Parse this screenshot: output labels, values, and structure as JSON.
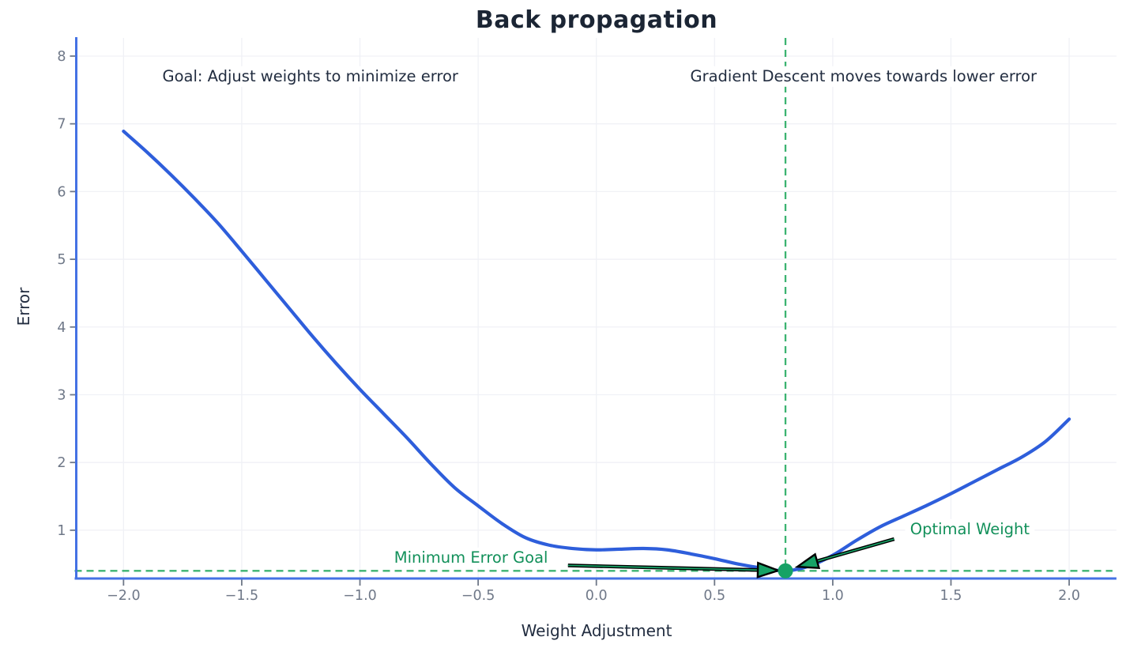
{
  "chart_data": {
    "type": "line",
    "title": "Back propagation",
    "xlabel": "Weight Adjustment",
    "ylabel": "Error",
    "xlim": [
      -2.2,
      2.2
    ],
    "ylim": [
      0.287,
      8.268
    ],
    "grid": true,
    "legend": "none",
    "xtick_values": [
      -2.0,
      -1.5,
      -1.0,
      -0.5,
      0.0,
      0.5,
      1.0,
      1.5,
      2.0
    ],
    "xtick_labels": [
      "−2.0",
      "−1.5",
      "−1.0",
      "−0.5",
      "0.0",
      "0.5",
      "1.0",
      "1.5",
      "2.0"
    ],
    "ytick_values": [
      1,
      2,
      3,
      4,
      5,
      6,
      7,
      8
    ],
    "ytick_labels": [
      "1",
      "2",
      "3",
      "4",
      "5",
      "6",
      "7",
      "8"
    ],
    "series": [
      {
        "name": "error-curve",
        "points": [
          [
            -2.0,
            6.89
          ],
          [
            -1.9,
            6.58
          ],
          [
            -1.8,
            6.25
          ],
          [
            -1.7,
            5.9
          ],
          [
            -1.6,
            5.53
          ],
          [
            -1.5,
            5.12
          ],
          [
            -1.4,
            4.7
          ],
          [
            -1.3,
            4.28
          ],
          [
            -1.2,
            3.86
          ],
          [
            -1.1,
            3.46
          ],
          [
            -1.0,
            3.08
          ],
          [
            -0.9,
            2.72
          ],
          [
            -0.8,
            2.36
          ],
          [
            -0.7,
            1.98
          ],
          [
            -0.6,
            1.63
          ],
          [
            -0.5,
            1.36
          ],
          [
            -0.4,
            1.1
          ],
          [
            -0.3,
            0.89
          ],
          [
            -0.2,
            0.78
          ],
          [
            -0.1,
            0.73
          ],
          [
            0.0,
            0.71
          ],
          [
            0.1,
            0.72
          ],
          [
            0.2,
            0.73
          ],
          [
            0.3,
            0.71
          ],
          [
            0.4,
            0.65
          ],
          [
            0.5,
            0.58
          ],
          [
            0.6,
            0.5
          ],
          [
            0.7,
            0.44
          ],
          [
            0.8,
            0.4
          ],
          [
            0.9,
            0.47
          ],
          [
            1.0,
            0.63
          ],
          [
            1.1,
            0.85
          ],
          [
            1.2,
            1.05
          ],
          [
            1.3,
            1.21
          ],
          [
            1.4,
            1.37
          ],
          [
            1.5,
            1.54
          ],
          [
            1.6,
            1.72
          ],
          [
            1.7,
            1.9
          ],
          [
            1.8,
            2.08
          ],
          [
            1.9,
            2.31
          ],
          [
            2.0,
            2.64
          ]
        ]
      }
    ],
    "optimal_point": {
      "x": 0.8,
      "y": 0.4
    },
    "min_error_line": {
      "y": 0.4,
      "style": "dashed"
    },
    "optimal_weight_line": {
      "x": 0.8,
      "style": "dashed"
    },
    "annotations": [
      {
        "text": "Goal: Adjust weights to minimize error",
        "x": -1.21,
        "y": 7.7,
        "style": "dark"
      },
      {
        "text": "Gradient Descent moves towards lower error",
        "x": 1.13,
        "y": 7.7,
        "style": "dark"
      },
      {
        "text": "Minimum Error Goal",
        "x": -0.53,
        "y": 0.59,
        "style": "green"
      },
      {
        "text": "Optimal Weight",
        "x": 1.58,
        "y": 1.01,
        "style": "green"
      }
    ],
    "arrows": [
      {
        "name": "gradient-step-toward-minimum-right",
        "from": [
          -0.12,
          0.48
        ],
        "to": [
          0.77,
          0.405
        ]
      },
      {
        "name": "gradient-step-toward-minimum-left",
        "from": [
          1.26,
          0.87
        ],
        "to": [
          0.85,
          0.46
        ]
      }
    ],
    "colors": {
      "curve": "#2e5edb",
      "spine": "#4472e4",
      "grid": "#f0f1f6",
      "tick_text": "#6f7888",
      "dark_text": "#222d40",
      "green_text": "#12905a",
      "dashed_line": "#3cb371",
      "marker": "#16a266",
      "arrow_fill": "#16a266",
      "arrow_edge": "#000000",
      "background": "#ffffff"
    }
  }
}
